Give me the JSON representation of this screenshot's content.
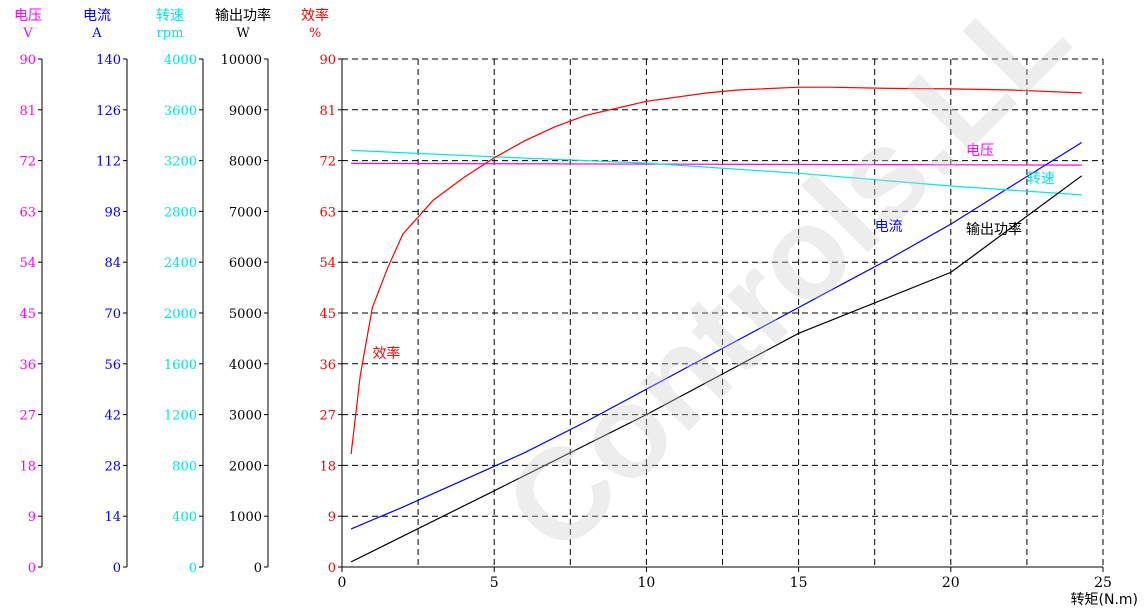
{
  "chart_data": {
    "type": "line",
    "xlabel": "转矩(N.m)",
    "xlim": [
      0,
      25
    ],
    "x_ticks": [
      0,
      5,
      10,
      15,
      20,
      25
    ],
    "watermark": "Controls.LL",
    "axes": [
      {
        "key": "voltage",
        "name": "电压",
        "unit": "V",
        "color": "#ff00ff",
        "range": [
          0,
          90
        ],
        "ticks": [
          "0",
          "9",
          "18",
          "27",
          "36",
          "45",
          "54",
          "63",
          "72",
          "81",
          "90"
        ]
      },
      {
        "key": "current",
        "name": "电流",
        "unit": "A",
        "color": "#0000ff",
        "range": [
          0,
          140
        ],
        "ticks": [
          "0",
          "14",
          "28",
          "42",
          "56",
          "70",
          "84",
          "98",
          "112",
          "126",
          "140"
        ]
      },
      {
        "key": "speed",
        "name": "转速",
        "unit": "rpm",
        "color": "#00e5e5",
        "range": [
          0,
          4000
        ],
        "ticks": [
          "0",
          "400",
          "800",
          "1200",
          "1600",
          "2000",
          "2400",
          "2800",
          "3200",
          "3600",
          "4000"
        ]
      },
      {
        "key": "power",
        "name": "输出功率",
        "unit": "W",
        "color": "#000000",
        "range": [
          0,
          10000
        ],
        "ticks": [
          "0",
          "1000",
          "2000",
          "3000",
          "4000",
          "5000",
          "6000",
          "7000",
          "8000",
          "9000",
          "10000"
        ]
      },
      {
        "key": "eff",
        "name": "效率",
        "unit": "%",
        "color": "#ff0000",
        "range": [
          0,
          90
        ],
        "ticks": [
          "0",
          "9",
          "18",
          "27",
          "36",
          "45",
          "54",
          "63",
          "72",
          "81",
          "90"
        ]
      }
    ],
    "series": [
      {
        "name": "电压",
        "axis": "voltage",
        "color": "#ff00ff",
        "x": [
          0.3,
          24.3
        ],
        "values": [
          71.5,
          71.2
        ]
      },
      {
        "name": "电流",
        "axis": "current",
        "color": "#0000ff",
        "x": [
          0.3,
          2,
          4,
          6,
          8,
          10,
          12,
          14,
          16,
          18,
          20,
          22,
          24.3
        ],
        "values": [
          10.5,
          16.5,
          24,
          31.5,
          40,
          49,
          58,
          67,
          76,
          85,
          94.5,
          105,
          117
        ]
      },
      {
        "name": "转速",
        "axis": "speed",
        "color": "#00e5e5",
        "x": [
          0.3,
          5,
          10,
          15,
          20,
          24.3
        ],
        "values": [
          3280,
          3230,
          3180,
          3100,
          3000,
          2930
        ]
      },
      {
        "name": "输出功率",
        "axis": "power",
        "color": "#000000",
        "x": [
          0.3,
          5,
          10,
          12.5,
          15,
          20,
          24.3
        ],
        "values": [
          100,
          1500,
          3000,
          3800,
          4600,
          5800,
          7700
        ]
      },
      {
        "name": "效率",
        "axis": "eff",
        "color": "#ff0000",
        "x": [
          0.3,
          0.6,
          1,
          1.5,
          2,
          3,
          4,
          5,
          6,
          7,
          8,
          10,
          12,
          13,
          15,
          16,
          18,
          20,
          22,
          24.3
        ],
        "values": [
          20,
          34,
          46,
          53,
          59,
          65,
          69,
          72.5,
          75.5,
          78,
          80,
          82.5,
          84,
          84.5,
          85,
          85,
          84.8,
          84.7,
          84.5,
          84
        ]
      }
    ],
    "annotations": [
      {
        "text": "效率",
        "color": "#ff0000",
        "x": 1.0,
        "y_axis": "eff",
        "y": 37
      },
      {
        "text": "电流",
        "color": "#0000ff",
        "x": 17.5,
        "y_axis": "eff",
        "y": 59.5
      },
      {
        "text": "输出功率",
        "color": "#000000",
        "x": 20.5,
        "y_axis": "eff",
        "y": 59
      },
      {
        "text": "电压",
        "color": "#ff00ff",
        "x": 20.5,
        "y_axis": "eff",
        "y": 73
      },
      {
        "text": "转速",
        "color": "#00e5e5",
        "x": 22.5,
        "y_axis": "eff",
        "y": 68
      }
    ]
  }
}
